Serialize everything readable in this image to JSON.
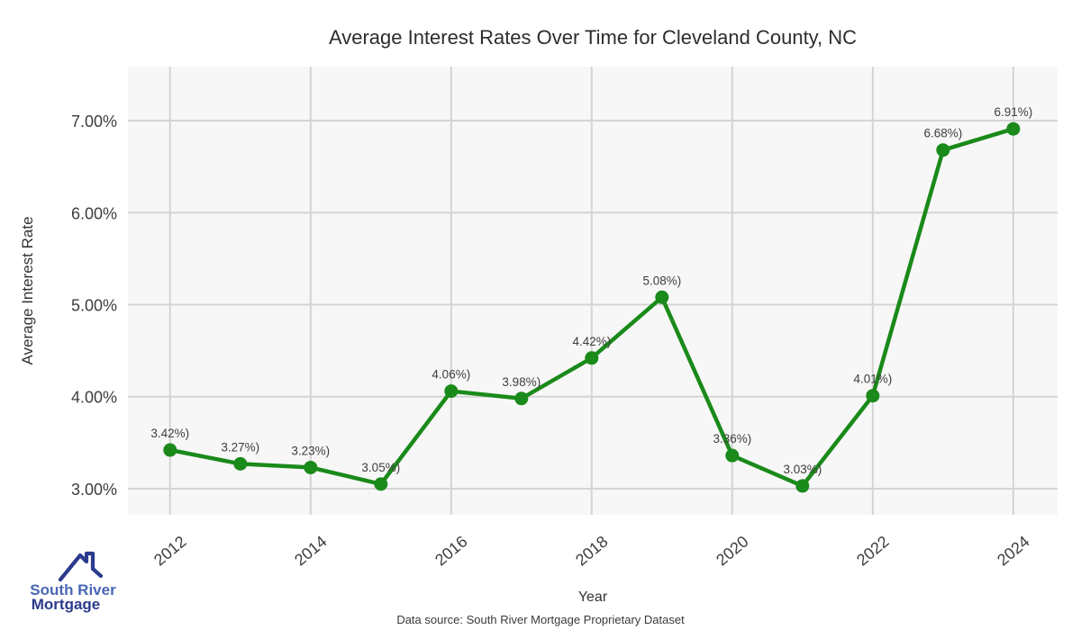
{
  "chart_data": {
    "type": "line",
    "title": "Average Interest Rates Over Time for Cleveland County, NC",
    "xlabel": "Year",
    "ylabel": "Average Interest Rate",
    "x": [
      2012,
      2013,
      2014,
      2015,
      2016,
      2017,
      2018,
      2019,
      2020,
      2021,
      2022,
      2023,
      2024
    ],
    "series": [
      {
        "name": "Average Interest Rate",
        "values": [
          3.42,
          3.27,
          3.23,
          3.05,
          4.06,
          3.98,
          4.42,
          5.08,
          3.36,
          3.03,
          4.01,
          6.68,
          6.91
        ]
      }
    ],
    "point_labels": [
      "3.42%)",
      "3.27%)",
      "3.23%)",
      "3.05%)",
      "4.06%)",
      "3.98%)",
      "4.42%)",
      "5.08%)",
      "3.36%)",
      "3.03%)",
      "4.01%)",
      "6.68%)",
      "6.91%)"
    ],
    "y_ticks": [
      {
        "value": 3,
        "label": "3.00%"
      },
      {
        "value": 4,
        "label": "4.00%"
      },
      {
        "value": 5,
        "label": "5.00%"
      },
      {
        "value": 6,
        "label": "6.00%"
      },
      {
        "value": 7,
        "label": "7.00%"
      }
    ],
    "x_ticks": [
      {
        "value": 2012,
        "label": "2012"
      },
      {
        "value": 2014,
        "label": "2014"
      },
      {
        "value": 2016,
        "label": "2016"
      },
      {
        "value": 2018,
        "label": "2018"
      },
      {
        "value": 2020,
        "label": "2020"
      },
      {
        "value": 2022,
        "label": "2022"
      },
      {
        "value": 2024,
        "label": "2024"
      }
    ],
    "xlim": [
      2011.4,
      2024.63
    ],
    "ylim": [
      2.716,
      7.587
    ],
    "grid": true,
    "legend": "none",
    "colors": {
      "line": "#1a8a1a",
      "marker": "#1a8a1a",
      "plot_background": "#f7f7f7",
      "gridline": "#d4d4d4",
      "title_text": "#2d2d2d",
      "tick_text": "#3d3d3d",
      "label_text": "#3d3d3d"
    }
  },
  "footer": {
    "source_text": "Data source: South River Mortgage Proprietary Dataset"
  },
  "logo": {
    "icon": "house-roof-icon",
    "line1": "South River",
    "line2": "Mortgage",
    "line1_color": "#4a66b5",
    "line2_color": "#2b3a8c",
    "icon_color": "#2b3a8c"
  }
}
